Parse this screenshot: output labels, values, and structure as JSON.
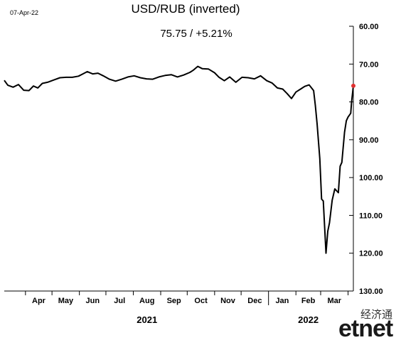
{
  "header": {
    "date": "07-Apr-22",
    "title": "USD/RUB (inverted)",
    "subtitle": "75.75  /  +5.21%"
  },
  "logo": {
    "chinese": "经济通",
    "brand": "etnet"
  },
  "colors": {
    "line": "#000000",
    "last_point": "#e03030",
    "axis": "#000000",
    "background": "#ffffff"
  },
  "chart_data": {
    "type": "line",
    "title": "USD/RUB (inverted)",
    "y_inverted": true,
    "ylim": [
      60,
      130
    ],
    "yticks": [
      "60.00",
      "70.00",
      "80.00",
      "90.00",
      "100.00",
      "110.00",
      "120.00",
      "130.00"
    ],
    "ytick_values": [
      60,
      70,
      80,
      90,
      100,
      110,
      120,
      130
    ],
    "grid": false,
    "months": [
      "Apr",
      "May",
      "Jun",
      "Jul",
      "Aug",
      "Sep",
      "Oct",
      "Nov",
      "Dec",
      "Jan",
      "Feb",
      "Mar"
    ],
    "years": [
      {
        "label": "2021",
        "first_month": 0,
        "last_month": 8
      },
      {
        "label": "2022",
        "first_month": 9,
        "last_month": 11
      }
    ],
    "x_start": "2021-03-08",
    "x_end": "2022-04-07",
    "series": [
      {
        "dates": [
          "2021-03-08",
          "2021-03-12",
          "2021-03-18",
          "2021-03-24",
          "2021-03-30",
          "2021-04-05",
          "2021-04-10",
          "2021-04-15",
          "2021-04-20",
          "2021-04-26",
          "2021-05-03",
          "2021-05-10",
          "2021-05-17",
          "2021-05-24",
          "2021-05-31",
          "2021-06-05",
          "2021-06-10",
          "2021-06-16",
          "2021-06-22",
          "2021-06-28",
          "2021-07-05",
          "2021-07-12",
          "2021-07-19",
          "2021-07-26",
          "2021-08-02",
          "2021-08-09",
          "2021-08-16",
          "2021-08-23",
          "2021-08-30",
          "2021-09-06",
          "2021-09-13",
          "2021-09-20",
          "2021-09-27",
          "2021-10-04",
          "2021-10-08",
          "2021-10-13",
          "2021-10-18",
          "2021-10-25",
          "2021-11-01",
          "2021-11-06",
          "2021-11-12",
          "2021-11-18",
          "2021-11-25",
          "2021-12-02",
          "2021-12-09",
          "2021-12-16",
          "2021-12-23",
          "2021-12-30",
          "2022-01-05",
          "2022-01-11",
          "2022-01-17",
          "2022-01-22",
          "2022-01-27",
          "2022-02-01",
          "2022-02-07",
          "2022-02-11",
          "2022-02-16",
          "2022-02-21",
          "2022-02-23",
          "2022-02-25",
          "2022-02-28",
          "2022-03-02",
          "2022-03-04",
          "2022-03-07",
          "2022-03-09",
          "2022-03-11",
          "2022-03-14",
          "2022-03-17",
          "2022-03-21",
          "2022-03-23",
          "2022-03-25",
          "2022-03-28",
          "2022-03-30",
          "2022-04-01",
          "2022-04-04",
          "2022-04-05",
          "2022-04-07"
        ],
        "values": [
          74.3,
          75.6,
          76.1,
          75.4,
          76.9,
          77.0,
          75.8,
          76.3,
          75.1,
          74.8,
          74.2,
          73.6,
          73.5,
          73.5,
          73.2,
          72.6,
          72.0,
          72.6,
          72.4,
          73.1,
          74.0,
          74.5,
          74.0,
          73.4,
          73.1,
          73.6,
          73.9,
          74.0,
          73.4,
          73.0,
          72.8,
          73.4,
          72.9,
          72.2,
          71.6,
          70.6,
          71.2,
          71.3,
          72.3,
          73.5,
          74.4,
          73.4,
          74.8,
          73.5,
          73.6,
          73.9,
          73.1,
          74.4,
          75.0,
          76.3,
          76.6,
          77.8,
          79.1,
          77.4,
          76.5,
          75.9,
          75.5,
          77.0,
          80.9,
          85.8,
          95.0,
          105.7,
          106.2,
          120.0,
          114.2,
          112.0,
          106.0,
          103.0,
          104.0,
          97.0,
          96.0,
          88.0,
          85.0,
          84.0,
          83.0,
          80.0,
          75.75
        ]
      }
    ]
  }
}
